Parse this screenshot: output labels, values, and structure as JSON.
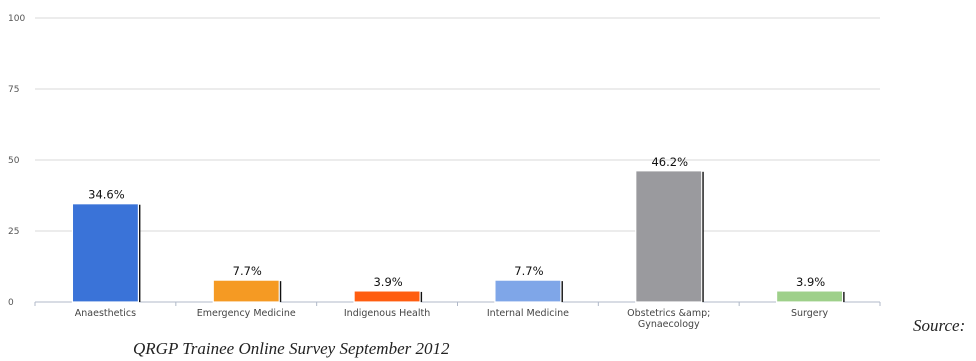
{
  "chart_data": {
    "type": "bar",
    "categories": [
      "Anaesthetics",
      "Emergency Medicine",
      "Indigenous Health",
      "Internal Medicine",
      "Obstetrics &amp; Gynaecology",
      "Surgery"
    ],
    "values": [
      34.6,
      7.7,
      3.9,
      7.7,
      46.2,
      3.9
    ],
    "data_labels": [
      "34.6%",
      "7.7%",
      "3.9%",
      "7.7%",
      "46.2%",
      "3.9%"
    ],
    "colors": [
      "#3a73d8",
      "#f59a23",
      "#ff5d10",
      "#7fa6e8",
      "#9a9a9e",
      "#9ed08a"
    ],
    "ylim": [
      0,
      100
    ],
    "yticks": [
      0,
      25,
      50,
      75,
      100
    ],
    "grid": true
  },
  "source": {
    "label": "Source:",
    "text": "QRGP Trainee Online Survey September 2012"
  }
}
